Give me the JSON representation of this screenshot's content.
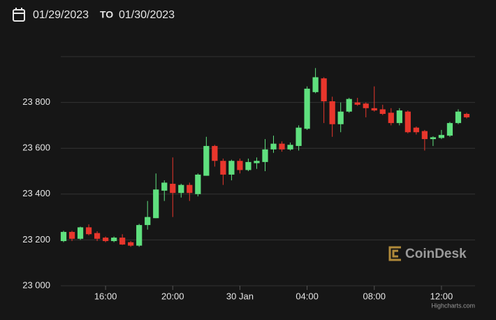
{
  "header": {
    "from": "01/29/2023",
    "separator": "TO",
    "to": "01/30/2023"
  },
  "watermark": "CoinDesk",
  "credits": "Highcharts.com",
  "chart_data": {
    "type": "candlestick",
    "up_color": "#5fe07e",
    "down_color": "#e8362c",
    "grid": true,
    "x": [
      "2023-01-29T13:30",
      "2023-01-29T14:00",
      "2023-01-29T14:30",
      "2023-01-29T15:00",
      "2023-01-29T15:30",
      "2023-01-29T16:00",
      "2023-01-29T16:30",
      "2023-01-29T17:00",
      "2023-01-29T17:30",
      "2023-01-29T18:00",
      "2023-01-29T18:30",
      "2023-01-29T19:00",
      "2023-01-29T19:30",
      "2023-01-29T20:00",
      "2023-01-29T20:30",
      "2023-01-29T21:00",
      "2023-01-29T21:30",
      "2023-01-29T22:00",
      "2023-01-29T22:30",
      "2023-01-29T23:00",
      "2023-01-29T23:30",
      "2023-01-30T00:00",
      "2023-01-30T00:30",
      "2023-01-30T01:00",
      "2023-01-30T01:30",
      "2023-01-30T02:00",
      "2023-01-30T02:30",
      "2023-01-30T03:00",
      "2023-01-30T03:30",
      "2023-01-30T04:00",
      "2023-01-30T04:30",
      "2023-01-30T05:00",
      "2023-01-30T05:30",
      "2023-01-30T06:00",
      "2023-01-30T06:30",
      "2023-01-30T07:00",
      "2023-01-30T07:30",
      "2023-01-30T08:00",
      "2023-01-30T08:30",
      "2023-01-30T09:00",
      "2023-01-30T09:30",
      "2023-01-30T10:00",
      "2023-01-30T10:30",
      "2023-01-30T11:00",
      "2023-01-30T11:30",
      "2023-01-30T12:00",
      "2023-01-30T12:30",
      "2023-01-30T13:00",
      "2023-01-30T13:30"
    ],
    "open": [
      23195,
      23235,
      23205,
      23255,
      23230,
      23210,
      23195,
      23210,
      23190,
      23175,
      23265,
      23295,
      23415,
      23445,
      23405,
      23440,
      23400,
      23480,
      23610,
      23545,
      23485,
      23545,
      23505,
      23535,
      23540,
      23595,
      23620,
      23595,
      23610,
      23685,
      23845,
      23905,
      23805,
      23705,
      23760,
      23800,
      23795,
      23775,
      23770,
      23755,
      23710,
      23760,
      23690,
      23675,
      23640,
      23645,
      23655,
      23710,
      23750
    ],
    "high": [
      23240,
      23240,
      23258,
      23268,
      23238,
      23215,
      23215,
      23225,
      23195,
      23270,
      23370,
      23490,
      23460,
      23560,
      23445,
      23450,
      23490,
      23650,
      23615,
      23555,
      23550,
      23555,
      23555,
      23560,
      23640,
      23655,
      23630,
      23625,
      23700,
      23870,
      23950,
      23910,
      23825,
      23800,
      23820,
      23820,
      23800,
      23870,
      23790,
      23775,
      23775,
      23765,
      23695,
      23680,
      23652,
      23680,
      23715,
      23770,
      23755
    ],
    "low": [
      23190,
      23195,
      23200,
      23220,
      23195,
      23190,
      23190,
      23178,
      23170,
      23170,
      23245,
      23295,
      23370,
      23300,
      23385,
      23370,
      23390,
      23480,
      23520,
      23440,
      23460,
      23490,
      23500,
      23510,
      23500,
      23580,
      23585,
      23590,
      23590,
      23680,
      23840,
      23710,
      23650,
      23670,
      23755,
      23785,
      23735,
      23760,
      23745,
      23700,
      23700,
      23665,
      23660,
      23590,
      23610,
      23640,
      23650,
      23705,
      23730
    ],
    "close": [
      23235,
      23205,
      23255,
      23225,
      23205,
      23195,
      23210,
      23180,
      23175,
      23265,
      23300,
      23420,
      23450,
      23405,
      23440,
      23405,
      23485,
      23610,
      23545,
      23485,
      23545,
      23505,
      23540,
      23545,
      23595,
      23620,
      23595,
      23615,
      23690,
      23860,
      23910,
      23805,
      23705,
      23760,
      23815,
      23790,
      23775,
      23765,
      23750,
      23710,
      23765,
      23670,
      23670,
      23640,
      23648,
      23658,
      23710,
      23760,
      23735
    ],
    "xlim": [
      "2023-01-29T13:20",
      "2023-01-30T14:00"
    ],
    "xticks": [
      {
        "value": "2023-01-29T16:00",
        "label": "16:00"
      },
      {
        "value": "2023-01-29T20:00",
        "label": "20:00"
      },
      {
        "value": "2023-01-30T00:00",
        "label": "30 Jan"
      },
      {
        "value": "2023-01-30T04:00",
        "label": "04:00"
      },
      {
        "value": "2023-01-30T08:00",
        "label": "08:00"
      },
      {
        "value": "2023-01-30T12:00",
        "label": "12:00"
      }
    ],
    "ylim": [
      23000,
      24000
    ],
    "yticks": [
      {
        "value": 23000,
        "label": "23 000"
      },
      {
        "value": 23200,
        "label": "23 200"
      },
      {
        "value": 23400,
        "label": "23 400"
      },
      {
        "value": 23600,
        "label": "23 600"
      },
      {
        "value": 23800,
        "label": "23 800"
      }
    ]
  }
}
